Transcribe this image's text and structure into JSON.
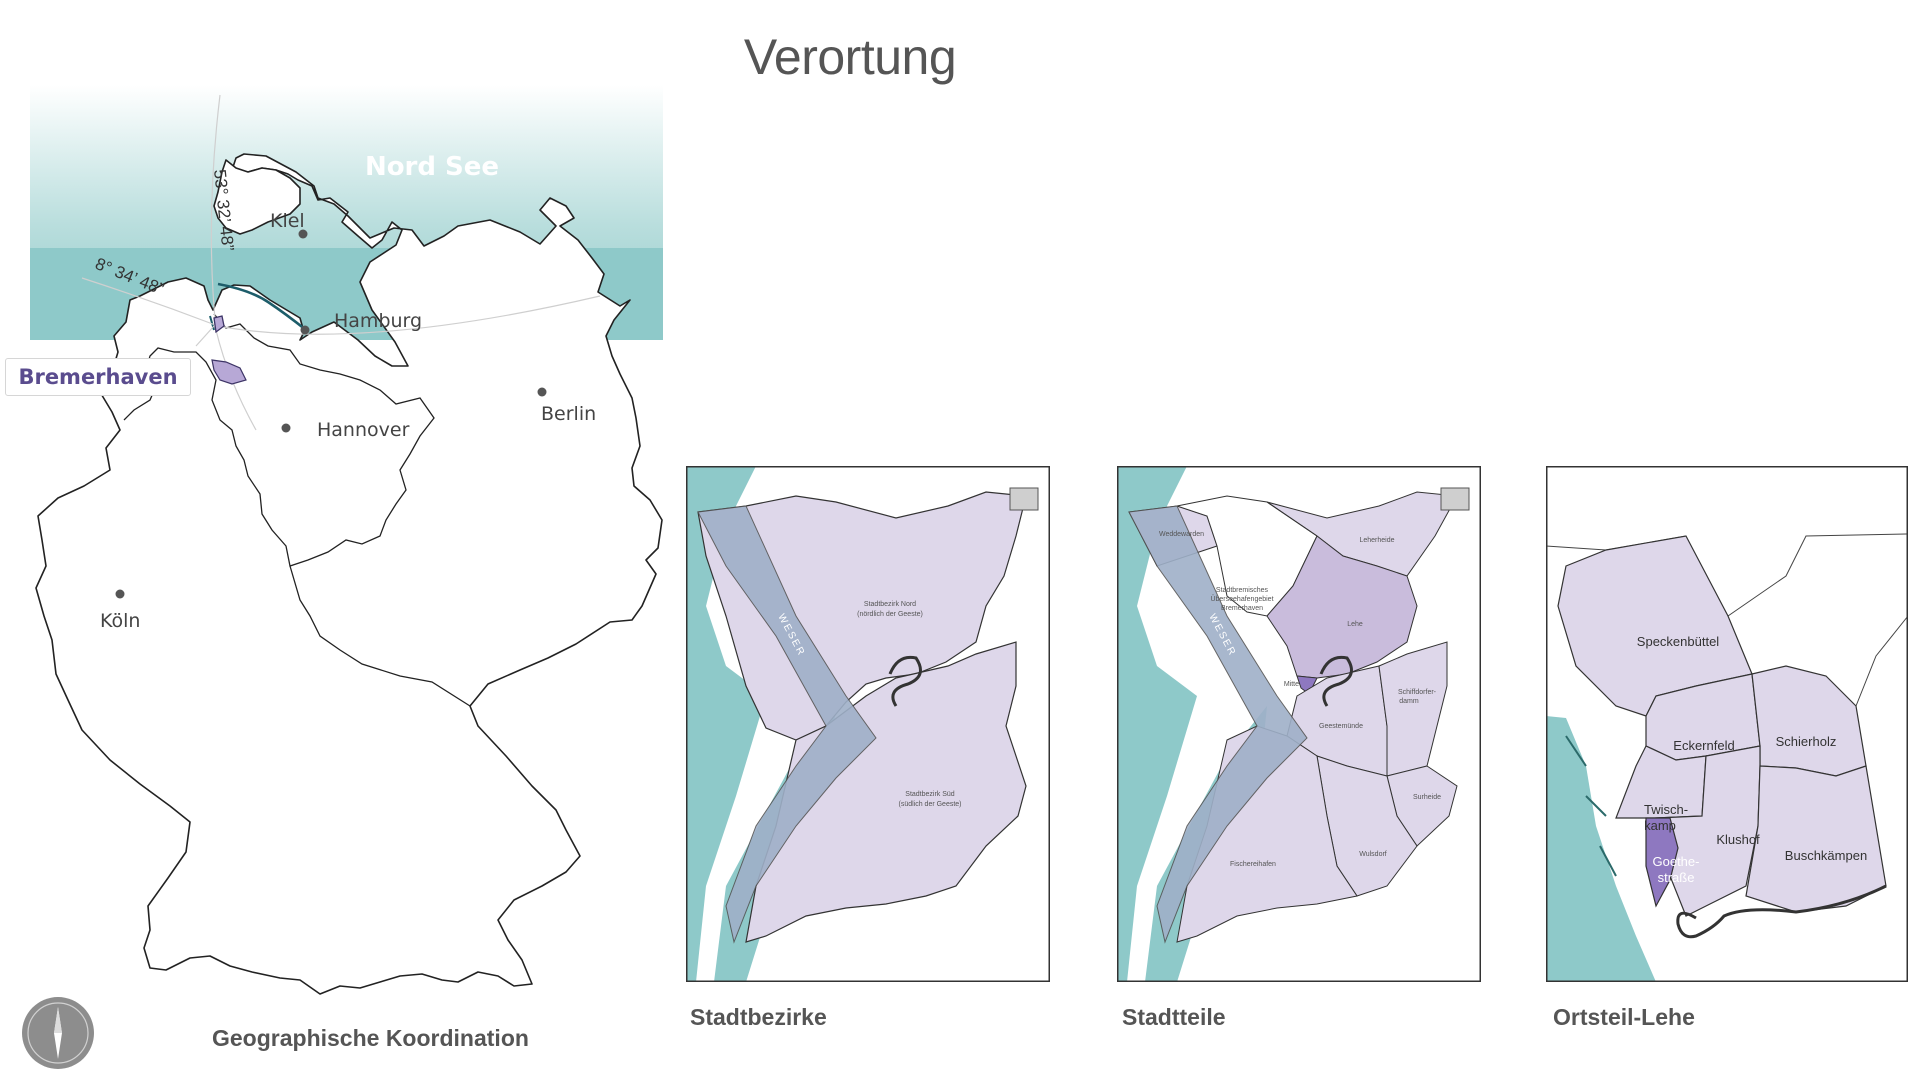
{
  "page": {
    "title": "Verortung"
  },
  "germany_map": {
    "sea_label": "Nord See",
    "lat_label": "53° 32’ 48”",
    "lon_label": "8° 34’ 48”",
    "highlight_label": "Bremerhaven",
    "cities": [
      {
        "name": "Kiel"
      },
      {
        "name": "Hamburg"
      },
      {
        "name": "Hannover"
      },
      {
        "name": "Berlin"
      },
      {
        "name": "Köln"
      }
    ],
    "caption": "Geographische Koordination"
  },
  "panels": {
    "stadtbezirke": {
      "caption": "Stadtbezirke",
      "river": "WESER",
      "nord_label": "Stadtbezirk Nord",
      "nord_sub": "(nördlich der Geeste)",
      "sued_label": "Stadtbezirk Süd",
      "sued_sub": "(südlich der Geeste)"
    },
    "stadtteile": {
      "caption": "Stadtteile",
      "river": "WESER",
      "labels": {
        "weddewarden": "Weddewarden",
        "leherheide": "Leherheide",
        "ueberseehafen1": "Stadtbremisches",
        "ueberseehafen2": "Überseehafengebiet",
        "ueberseehafen3": "Bremerhaven",
        "lehe": "Lehe",
        "mitte": "Mitte",
        "geestemuende": "Geestemünde",
        "schiffdorferdamm1": "Schiffdorfer-",
        "schiffdorferdamm2": "damm",
        "surheide": "Surheide",
        "wulsdorf": "Wulsdorf",
        "fischereihafen": "Fischereihafen"
      }
    },
    "ortsteil": {
      "caption": "Ortsteil-Lehe",
      "labels": {
        "speckenbuettel": "Speckenbüttel",
        "eckernfeld": "Eckernfeld",
        "schierholz": "Schierholz",
        "twisch1": "Twisch-",
        "twisch2": "kamp",
        "klushof": "Klushof",
        "buschkaempen": "Buschkämpen",
        "goethe1": "Goethe-",
        "goethe2": "straße"
      }
    }
  },
  "colors": {
    "sea": "#8ec9c9",
    "district": "#ded7ea",
    "district_dark": "#c9bcdc",
    "highlight": "#8e78c0",
    "river": "#9fb0c8",
    "text": "#555555",
    "accent_text": "#5a4c8e"
  }
}
